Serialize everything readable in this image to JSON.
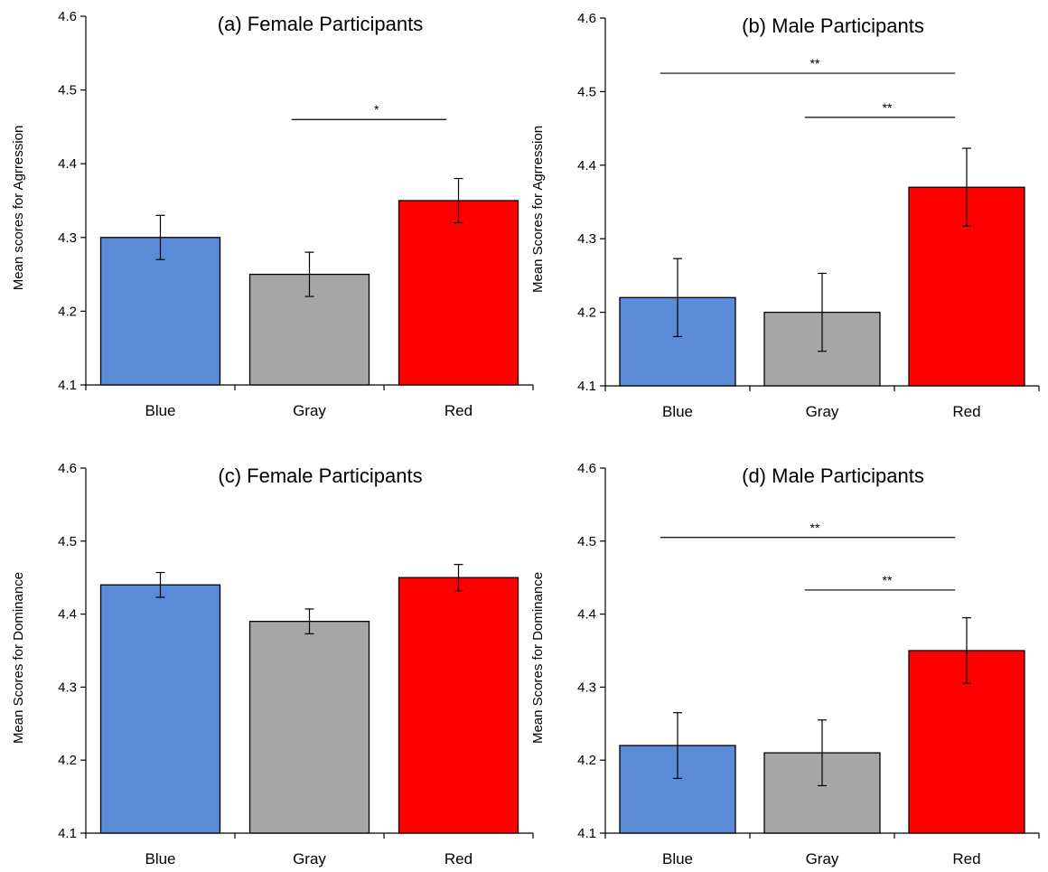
{
  "chart_data": [
    {
      "type": "bar",
      "title": "(a) Female Participants",
      "ylabel": "Mean scores for Agrression",
      "xlabel": "",
      "categories": [
        "Blue",
        "Gray",
        "Red"
      ],
      "values": [
        4.3,
        4.25,
        4.35
      ],
      "errors": [
        0.03,
        0.03,
        0.03
      ],
      "colors": [
        "#5b8bd6",
        "#a6a6a6",
        "#ff0000"
      ],
      "ylim": [
        4.1,
        4.6
      ],
      "yticks": [
        "4.1",
        "4.2",
        "4.3",
        "4.4",
        "4.5",
        "4.6"
      ],
      "grid": false,
      "significance": [
        {
          "from": 1,
          "to": 2,
          "label": "*",
          "y": 4.46
        }
      ]
    },
    {
      "type": "bar",
      "title": "(b) Male Participants",
      "ylabel": "Mean Scores for Agrression",
      "xlabel": "",
      "categories": [
        "Blue",
        "Gray",
        "Red"
      ],
      "values": [
        4.22,
        4.2,
        4.37
      ],
      "errors": [
        0.053,
        0.053,
        0.053
      ],
      "colors": [
        "#5b8bd6",
        "#a6a6a6",
        "#ff0000"
      ],
      "ylim": [
        4.1,
        4.6
      ],
      "yticks": [
        "4.1",
        "4.2",
        "4.3",
        "4.4",
        "4.5",
        "4.6"
      ],
      "grid": false,
      "significance": [
        {
          "from": 0,
          "to": 2,
          "label": "**",
          "y": 4.525
        },
        {
          "from": 1,
          "to": 2,
          "label": "**",
          "y": 4.465
        }
      ]
    },
    {
      "type": "bar",
      "title": "(c) Female Participants",
      "ylabel": "Mean Scores for Dominance",
      "xlabel": "",
      "categories": [
        "Blue",
        "Gray",
        "Red"
      ],
      "values": [
        4.44,
        4.39,
        4.45
      ],
      "errors": [
        0.017,
        0.017,
        0.018
      ],
      "colors": [
        "#5b8bd6",
        "#a6a6a6",
        "#ff0000"
      ],
      "ylim": [
        4.1,
        4.6
      ],
      "yticks": [
        "4.1",
        "4.2",
        "4.3",
        "4.4",
        "4.5",
        "4.6"
      ],
      "grid": false,
      "significance": []
    },
    {
      "type": "bar",
      "title": "(d) Male Participants",
      "ylabel": "Mean Scores for Dominance",
      "xlabel": "",
      "categories": [
        "Blue",
        "Gray",
        "Red"
      ],
      "values": [
        4.22,
        4.21,
        4.35
      ],
      "errors": [
        0.045,
        0.045,
        0.045
      ],
      "colors": [
        "#5b8bd6",
        "#a6a6a6",
        "#ff0000"
      ],
      "ylim": [
        4.1,
        4.6
      ],
      "yticks": [
        "4.1",
        "4.2",
        "4.3",
        "4.4",
        "4.5",
        "4.6"
      ],
      "grid": false,
      "significance": [
        {
          "from": 0,
          "to": 2,
          "label": "**",
          "y": 4.505
        },
        {
          "from": 1,
          "to": 2,
          "label": "**",
          "y": 4.433
        }
      ]
    }
  ]
}
